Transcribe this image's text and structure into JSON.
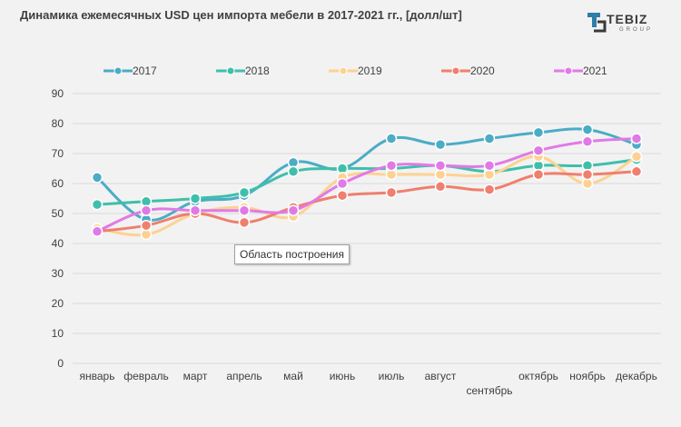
{
  "title": "Динамика ежемесячных USD цен импорта мебели в 2017-2021 гг., [долл/шт]",
  "logo": {
    "name": "TEBIZ",
    "sub": "GROUP"
  },
  "tooltip": "Область построения",
  "colors": {
    "2017": "#4bacc6",
    "2018": "#3fbfaa",
    "2019": "#fcd292",
    "2020": "#ef7f6e",
    "2021": "#e07ae6",
    "grid": "#d9d9d9",
    "axis_text": "#404040"
  },
  "chart_data": {
    "type": "line",
    "title": "Динамика ежемесячных USD цен импорта мебели в 2017-2021 гг., [долл/шт]",
    "categories": [
      "январь",
      "февраль",
      "март",
      "апрель",
      "май",
      "июнь",
      "июль",
      "август",
      "сентябрь",
      "октябрь",
      "ноябрь",
      "декабрь"
    ],
    "ylim": [
      0,
      90
    ],
    "yticks": [
      0,
      10,
      20,
      30,
      40,
      50,
      60,
      70,
      80,
      90
    ],
    "grid": true,
    "legend": "top",
    "series": [
      {
        "name": "2017",
        "values": [
          62,
          48,
          54,
          56,
          67,
          65,
          75,
          73,
          75,
          77,
          78,
          73
        ]
      },
      {
        "name": "2018",
        "values": [
          53,
          54,
          55,
          57,
          64,
          65,
          65,
          66,
          64,
          66,
          66,
          68
        ]
      },
      {
        "name": "2019",
        "values": [
          45,
          43,
          50,
          52,
          49,
          62,
          63,
          63,
          63,
          69,
          60,
          69
        ]
      },
      {
        "name": "2020",
        "values": [
          44,
          46,
          50,
          47,
          52,
          56,
          57,
          59,
          58,
          63,
          63,
          64
        ]
      },
      {
        "name": "2021",
        "values": [
          44,
          51,
          51,
          51,
          51,
          60,
          66,
          66,
          66,
          71,
          74,
          75
        ]
      }
    ]
  }
}
